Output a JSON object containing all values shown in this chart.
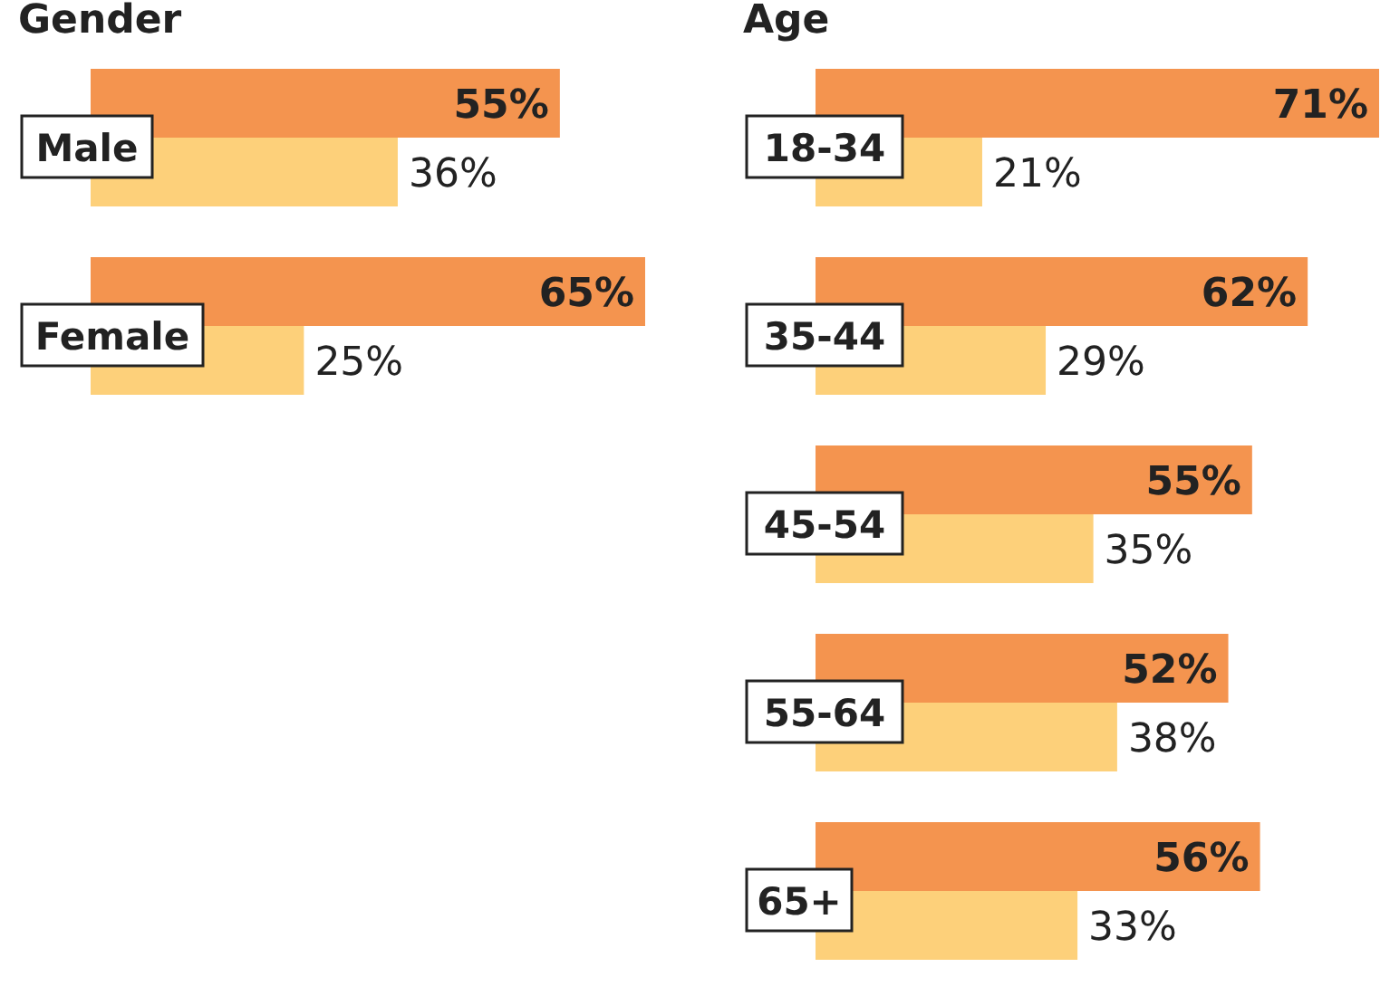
{
  "chart_data": [
    {
      "type": "bar",
      "orientation": "horizontal",
      "title": "Gender",
      "categories": [
        "Male",
        "Female"
      ],
      "series": [
        {
          "color": "#f4944f",
          "values": [
            55,
            65
          ],
          "value_labels": [
            "55%",
            "65%"
          ]
        },
        {
          "color": "#fdd07a",
          "values": [
            36,
            25
          ],
          "value_labels": [
            "36%",
            "25%"
          ]
        }
      ]
    },
    {
      "type": "bar",
      "orientation": "horizontal",
      "title": "Age",
      "categories": [
        "18-34",
        "35-44",
        "45-54",
        "55-64",
        "65+"
      ],
      "series": [
        {
          "color": "#f4944f",
          "values": [
            71,
            62,
            55,
            52,
            56
          ],
          "value_labels": [
            "71%",
            "62%",
            "55%",
            "52%",
            "56%"
          ]
        },
        {
          "color": "#fdd07a",
          "values": [
            21,
            29,
            35,
            38,
            33
          ],
          "value_labels": [
            "21%",
            "29%",
            "35%",
            "38%",
            "33%"
          ]
        }
      ]
    }
  ]
}
